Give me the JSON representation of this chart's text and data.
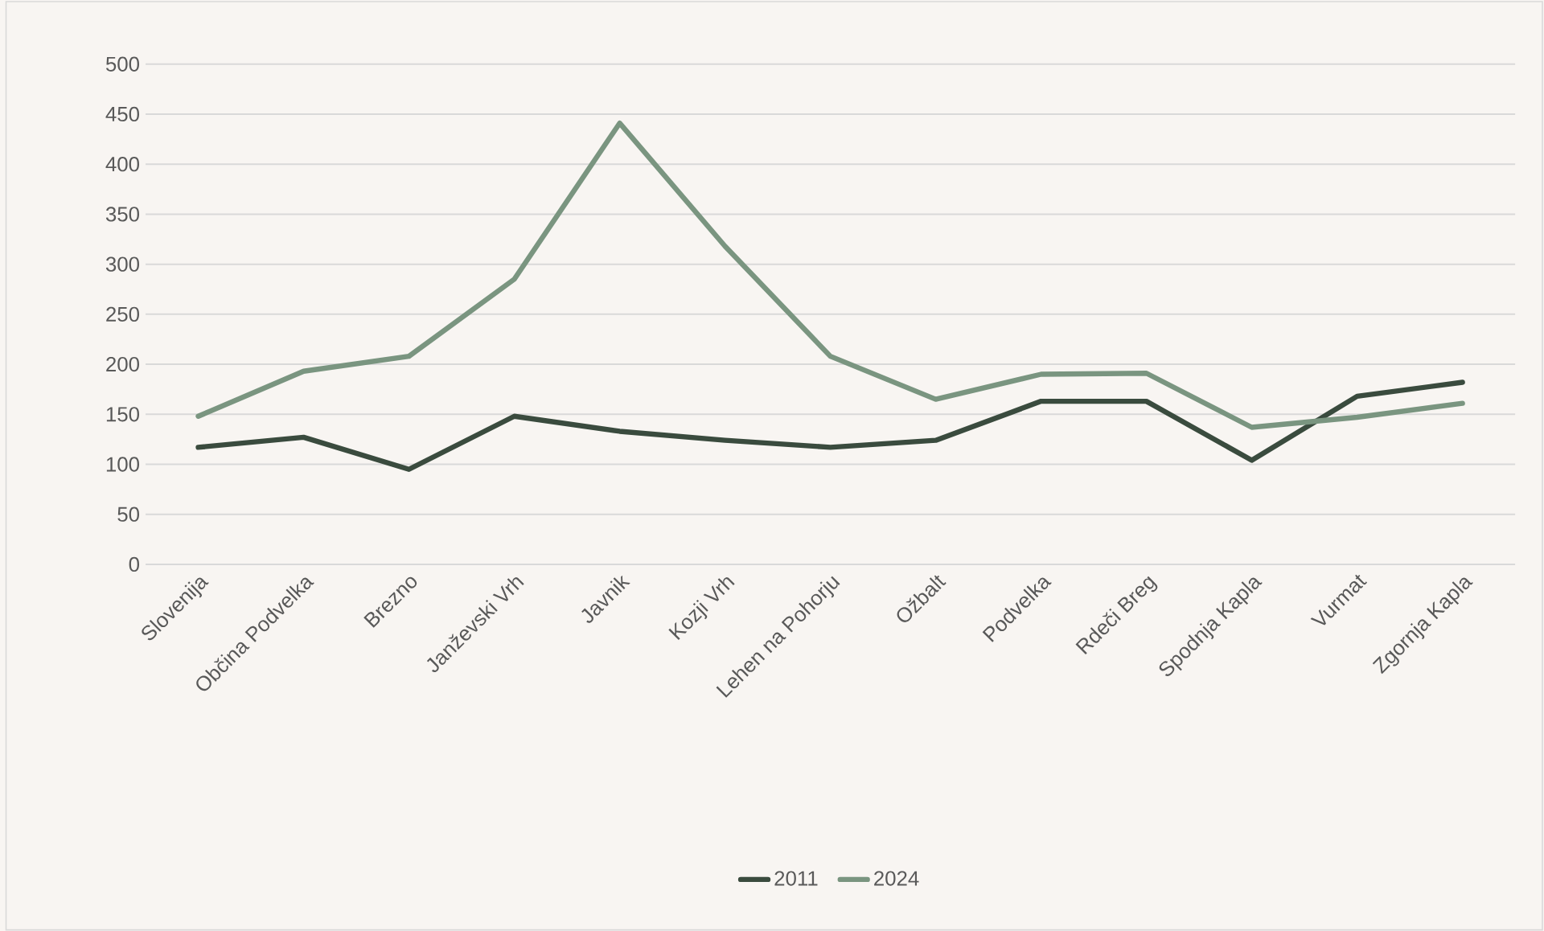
{
  "chart_data": {
    "type": "line",
    "categories": [
      "Slovenija",
      "Občina Podvelka",
      "Brezno",
      "Janževski Vrh",
      "Javnik",
      "Kozji Vrh",
      "Lehen na Pohorju",
      "Ožbalt",
      "Podvelka",
      "Rdeči Breg",
      "Spodnja Kapla",
      "Vurmat",
      "Zgornja Kapla"
    ],
    "series": [
      {
        "name": "2011",
        "color": "#3a4b3e",
        "values": [
          117,
          127,
          95,
          148,
          133,
          124,
          117,
          124,
          163,
          163,
          104,
          168,
          182
        ]
      },
      {
        "name": "2024",
        "color": "#7a9580",
        "values": [
          148,
          193,
          208,
          285,
          441,
          318,
          208,
          165,
          190,
          191,
          137,
          147,
          161
        ]
      }
    ],
    "ylim": [
      0,
      500
    ],
    "yticks": [
      0,
      50,
      100,
      150,
      200,
      250,
      300,
      350,
      400,
      450,
      500
    ],
    "grid": "y",
    "legend": "bottom",
    "marker": "none",
    "line_style": "solid"
  }
}
